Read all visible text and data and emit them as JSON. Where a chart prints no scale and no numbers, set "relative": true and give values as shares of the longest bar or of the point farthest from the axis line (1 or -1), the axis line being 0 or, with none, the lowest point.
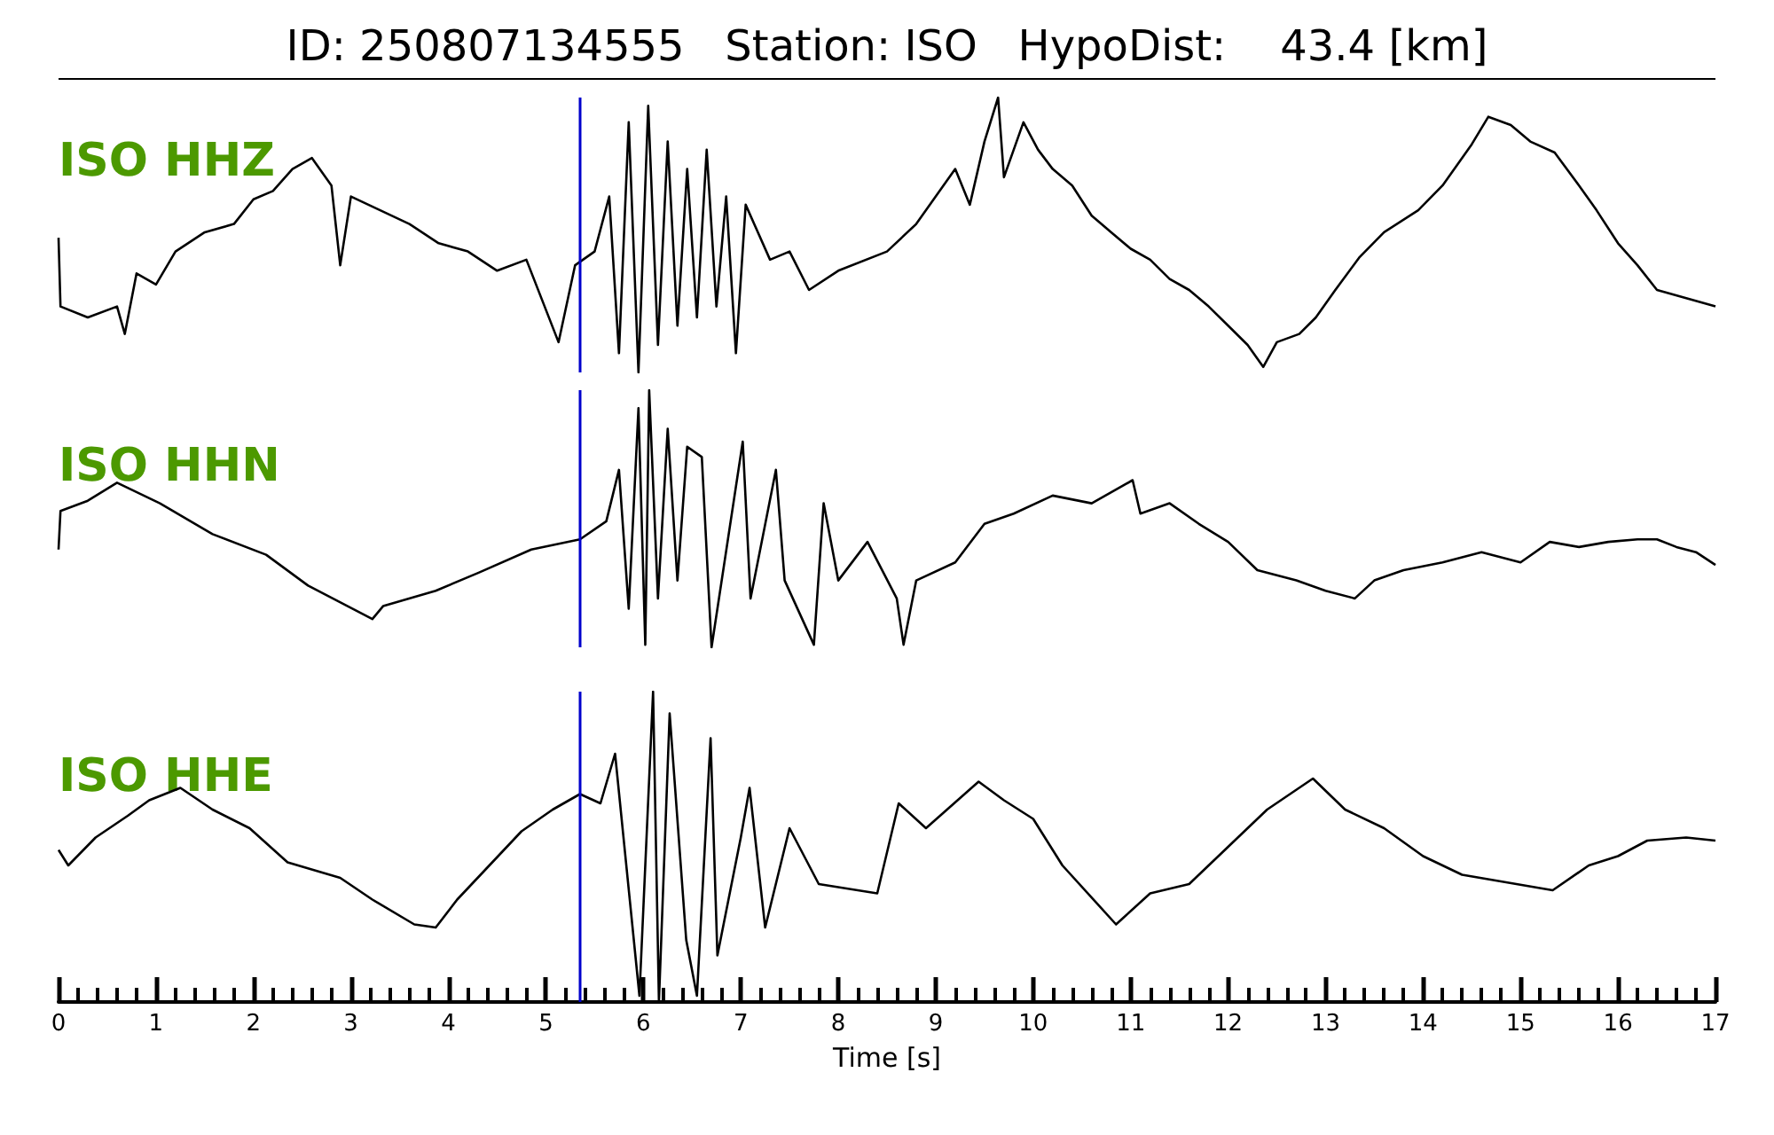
{
  "chart_data": [
    {
      "type": "line",
      "title": "ID: 250807134555   Station: ISO   HypoDist:    43.4 [km]",
      "relative": true,
      "annotations": [
        "ISO HHZ"
      ],
      "xlim": [
        0,
        17
      ],
      "tick_labels": false,
      "marker": "none",
      "line_style": "solid",
      "ref_lines": [
        {
          "axis": "x",
          "value": 5.35,
          "color": "#0000cc"
        }
      ],
      "x": [
        0.0,
        0.02,
        0.3,
        0.6,
        0.68,
        0.8,
        1.0,
        1.2,
        1.5,
        1.8,
        2.0,
        2.2,
        2.4,
        2.6,
        2.8,
        2.89,
        3.0,
        3.3,
        3.6,
        3.9,
        4.2,
        4.5,
        4.8,
        5.13,
        5.3,
        5.5,
        5.65,
        5.75,
        5.85,
        5.95,
        6.05,
        6.15,
        6.25,
        6.35,
        6.45,
        6.55,
        6.65,
        6.75,
        6.85,
        6.95,
        7.05,
        7.3,
        7.5,
        7.7,
        8.0,
        8.5,
        8.8,
        9.0,
        9.2,
        9.35,
        9.5,
        9.64,
        9.7,
        9.9,
        10.05,
        10.2,
        10.4,
        10.6,
        10.8,
        11.0,
        11.2,
        11.4,
        11.6,
        11.8,
        12.0,
        12.2,
        12.36,
        12.5,
        12.73,
        12.9,
        13.1,
        13.35,
        13.6,
        13.95,
        14.2,
        14.5,
        14.67,
        14.9,
        15.1,
        15.35,
        15.6,
        15.78,
        16.0,
        16.2,
        16.4,
        16.7,
        17.0
      ],
      "series": [
        {
          "color": "#000000",
          "values": [
            0.49,
            0.24,
            0.2,
            0.24,
            0.14,
            0.36,
            0.32,
            0.44,
            0.51,
            0.54,
            0.63,
            0.66,
            0.74,
            0.78,
            0.68,
            0.39,
            0.64,
            0.59,
            0.54,
            0.47,
            0.44,
            0.37,
            0.41,
            0.11,
            0.39,
            0.44,
            0.64,
            0.07,
            0.91,
            0,
            0.97,
            0.1,
            0.84,
            0.17,
            0.74,
            0.2,
            0.81,
            0.24,
            0.64,
            0.07,
            0.61,
            0.41,
            0.44,
            0.3,
            0.37,
            0.44,
            0.54,
            0.64,
            0.74,
            0.61,
            0.84,
            1.0,
            0.71,
            0.91,
            0.81,
            0.74,
            0.68,
            0.57,
            0.51,
            0.45,
            0.41,
            0.34,
            0.3,
            0.24,
            0.17,
            0.1,
            0.02,
            0.11,
            0.14,
            0.2,
            0.3,
            0.42,
            0.51,
            0.59,
            0.68,
            0.83,
            0.93,
            0.9,
            0.84,
            0.8,
            0.68,
            0.59,
            0.47,
            0.39,
            0.3,
            0.27,
            0.24
          ]
        }
      ]
    },
    {
      "type": "line",
      "relative": true,
      "annotations": [
        "ISO HHN"
      ],
      "xlim": [
        0,
        17
      ],
      "tick_labels": false,
      "marker": "none",
      "line_style": "solid",
      "ref_lines": [
        {
          "axis": "x",
          "value": 5.35,
          "color": "#0000cc"
        }
      ],
      "x": [
        0.0,
        0.02,
        0.3,
        0.6,
        1.04,
        1.58,
        2.13,
        2.56,
        3.22,
        3.33,
        3.87,
        4.31,
        4.85,
        5.35,
        5.62,
        5.75,
        5.85,
        5.95,
        6.02,
        6.06,
        6.15,
        6.25,
        6.35,
        6.45,
        6.6,
        6.7,
        7.02,
        7.1,
        7.36,
        7.45,
        7.75,
        7.85,
        8.0,
        8.3,
        8.6,
        8.67,
        8.8,
        9.2,
        9.5,
        9.8,
        10.2,
        10.6,
        11.02,
        11.1,
        11.4,
        11.7,
        12.0,
        12.3,
        12.7,
        13.0,
        13.3,
        13.5,
        13.8,
        14.2,
        14.6,
        15.0,
        15.3,
        15.6,
        15.9,
        16.2,
        16.4,
        16.6,
        16.8,
        17.0
      ],
      "series": [
        {
          "color": "#000000",
          "values": [
            0.38,
            0.53,
            0.57,
            0.64,
            0.56,
            0.44,
            0.36,
            0.24,
            0.11,
            0.16,
            0.22,
            0.29,
            0.38,
            0.42,
            0.49,
            0.69,
            0.15,
            0.93,
            0.01,
            1.0,
            0.19,
            0.85,
            0.26,
            0.78,
            0.74,
            0,
            0.8,
            0.19,
            0.69,
            0.26,
            0.01,
            0.56,
            0.26,
            0.41,
            0.19,
            0.01,
            0.26,
            0.33,
            0.48,
            0.52,
            0.59,
            0.56,
            0.65,
            0.52,
            0.56,
            0.48,
            0.41,
            0.3,
            0.26,
            0.22,
            0.19,
            0.26,
            0.3,
            0.33,
            0.37,
            0.33,
            0.41,
            0.39,
            0.41,
            0.42,
            0.42,
            0.39,
            0.37,
            0.32
          ]
        }
      ]
    },
    {
      "type": "line",
      "relative": true,
      "annotations": [
        "ISO HHE"
      ],
      "xlabel": "Time [s]",
      "xlim": [
        0,
        17
      ],
      "xticks": [
        0,
        1,
        2,
        3,
        4,
        5,
        6,
        7,
        8,
        9,
        10,
        11,
        12,
        13,
        14,
        15,
        16,
        17
      ],
      "tick_labels": "x",
      "marker": "none",
      "line_style": "solid",
      "ref_lines": [
        {
          "axis": "x",
          "value": 5.35,
          "color": "#0000cc"
        }
      ],
      "x": [
        0.0,
        0.1,
        0.38,
        0.71,
        0.93,
        1.25,
        1.58,
        1.96,
        2.35,
        2.89,
        3.22,
        3.65,
        3.87,
        4.09,
        4.42,
        4.75,
        5.07,
        5.35,
        5.56,
        5.71,
        5.96,
        6.1,
        6.16,
        6.27,
        6.44,
        6.55,
        6.69,
        6.76,
        7.0,
        7.09,
        7.25,
        7.5,
        7.8,
        8.4,
        8.62,
        8.9,
        9.44,
        9.7,
        10.0,
        10.3,
        10.85,
        11.2,
        11.6,
        12.0,
        12.4,
        12.87,
        13.2,
        13.6,
        14.0,
        14.4,
        15.33,
        15.7,
        16.0,
        16.3,
        16.7,
        17.0
      ],
      "series": [
        {
          "color": "#000000",
          "values": [
            0.49,
            0.44,
            0.53,
            0.6,
            0.65,
            0.69,
            0.62,
            0.56,
            0.45,
            0.4,
            0.33,
            0.25,
            0.24,
            0.33,
            0.44,
            0.55,
            0.62,
            0.67,
            0.64,
            0.8,
            0.02,
            1.0,
            0,
            0.93,
            0.2,
            0.02,
            0.85,
            0.15,
            0.53,
            0.69,
            0.24,
            0.56,
            0.38,
            0.35,
            0.64,
            0.56,
            0.71,
            0.65,
            0.59,
            0.44,
            0.25,
            0.35,
            0.38,
            0.5,
            0.62,
            0.72,
            0.62,
            0.56,
            0.47,
            0.41,
            0.36,
            0.44,
            0.47,
            0.52,
            0.53,
            0.52
          ]
        }
      ]
    }
  ]
}
